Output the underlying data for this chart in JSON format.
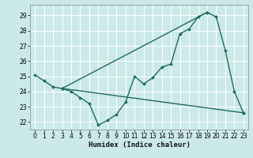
{
  "title": "",
  "xlabel": "Humidex (Indice chaleur)",
  "ylabel": "",
  "bg_color": "#cce9e9",
  "grid_color": "#b0d8d8",
  "line_color": "#1e6b5e",
  "xlim": [
    -0.5,
    23.5
  ],
  "ylim": [
    21.5,
    29.7
  ],
  "yticks": [
    22,
    23,
    24,
    25,
    26,
    27,
    28,
    29
  ],
  "xticks": [
    0,
    1,
    2,
    3,
    4,
    5,
    6,
    7,
    8,
    9,
    10,
    11,
    12,
    13,
    14,
    15,
    16,
    17,
    18,
    19,
    20,
    21,
    22,
    23
  ],
  "line1_x": [
    0,
    1,
    2,
    3,
    4,
    5,
    6,
    7,
    8,
    9,
    10,
    11,
    12,
    13,
    14,
    15,
    16,
    17,
    18,
    19,
    20,
    21,
    22,
    23
  ],
  "line1_y": [
    25.1,
    24.7,
    24.3,
    24.2,
    24.0,
    23.6,
    23.2,
    21.8,
    22.1,
    22.5,
    23.3,
    25.0,
    24.5,
    24.9,
    25.6,
    25.8,
    27.8,
    28.1,
    28.9,
    29.2,
    28.9,
    26.7,
    24.0,
    22.6
  ],
  "line2_x": [
    3,
    23
  ],
  "line2_y": [
    24.2,
    22.6
  ],
  "line3_x": [
    3,
    19
  ],
  "line3_y": [
    24.2,
    29.2
  ]
}
